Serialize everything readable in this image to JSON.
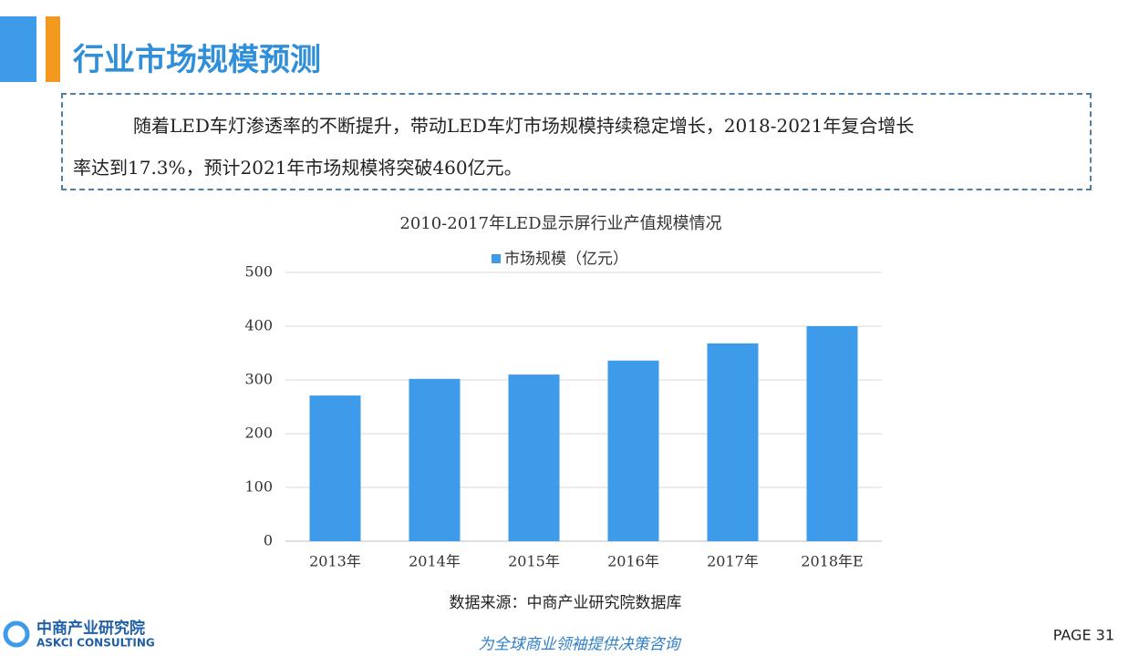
{
  "header": {
    "title": "行业市场规模预测"
  },
  "summary": {
    "lines": [
      "随着LED车灯渗透率的不断提升，带动LED车灯市场规模持续稳定增长，2018-2021年复合增长",
      "率达到17.3%，预计2021年市场规模将突破460亿元。"
    ]
  },
  "chart_data": {
    "type": "bar",
    "title": "2010-2017年LED显示屏行业产值规模情况",
    "categories": [
      "2013年",
      "2014年",
      "2015年",
      "2016年",
      "2017年",
      "2018年E"
    ],
    "series": [
      {
        "name": "市场规模（亿元）",
        "color": "#3d9be9",
        "values": [
          271,
          302,
          310,
          336,
          368,
          400
        ]
      }
    ],
    "ylim": [
      0,
      500
    ],
    "yticks": [
      0,
      100,
      200,
      300,
      400,
      500
    ],
    "grid": true,
    "legend": "top"
  },
  "source": "数据来源：中商产业研究院数据库",
  "footer": {
    "logo_cn": "中商产业研究院",
    "logo_en": "ASKCI CONSULTING",
    "slogan": "为全球商业领袖提供决策咨询",
    "page": "PAGE 31"
  }
}
